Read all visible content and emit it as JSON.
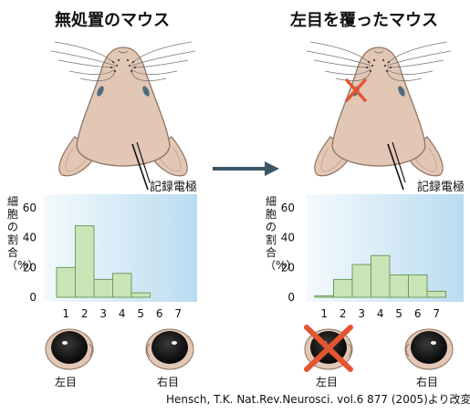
{
  "panels": [
    {
      "title": "無処置のマウス",
      "electrode_label": "記録電極",
      "eye_labels": {
        "left": "左目",
        "right": "右目"
      },
      "left_eye_crossed": false,
      "chart_data": {
        "type": "bar",
        "categories": [
          "1",
          "2",
          "3",
          "4",
          "5",
          "6",
          "7"
        ],
        "values": [
          20,
          48,
          12,
          16,
          3,
          0,
          0
        ],
        "ylabel": "細胞の割合（%）",
        "yticks": [
          0,
          20,
          40,
          60
        ],
        "ylim": [
          0,
          70
        ],
        "xticks": [
          "1",
          "2",
          "3",
          "4",
          "5",
          "6",
          "7"
        ]
      }
    },
    {
      "title": "左目を覆ったマウス",
      "electrode_label": "記録電極",
      "eye_labels": {
        "left": "左目",
        "right": "右目"
      },
      "left_eye_crossed": true,
      "chart_data": {
        "type": "bar",
        "categories": [
          "1",
          "2",
          "3",
          "4",
          "5",
          "6",
          "7"
        ],
        "values": [
          1,
          12,
          22,
          28,
          15,
          15,
          4
        ],
        "ylabel": "細胞の割合（%）",
        "yticks": [
          0,
          20,
          40,
          60
        ],
        "ylim": [
          0,
          70
        ],
        "xticks": [
          "1",
          "2",
          "3",
          "4",
          "5",
          "6",
          "7"
        ]
      }
    }
  ],
  "citation": "Hensch, T.K. Nat.Rev.Neurosci. vol.6 877 (2005)より改変",
  "colors": {
    "bar_fill": "#c9e5b6",
    "bar_stroke": "#6f9a60",
    "chart_bg_light": "#f4fafd",
    "chart_bg_dark": "#b9dcf0",
    "cross": "#e3542f",
    "arrow": "#3e5566",
    "mouse_fill": "#e2c7b5",
    "mouse_stroke": "#8f7565"
  },
  "icons": [
    "mouse-head-icon",
    "eye-icon",
    "cross-icon",
    "arrow-right-icon"
  ]
}
